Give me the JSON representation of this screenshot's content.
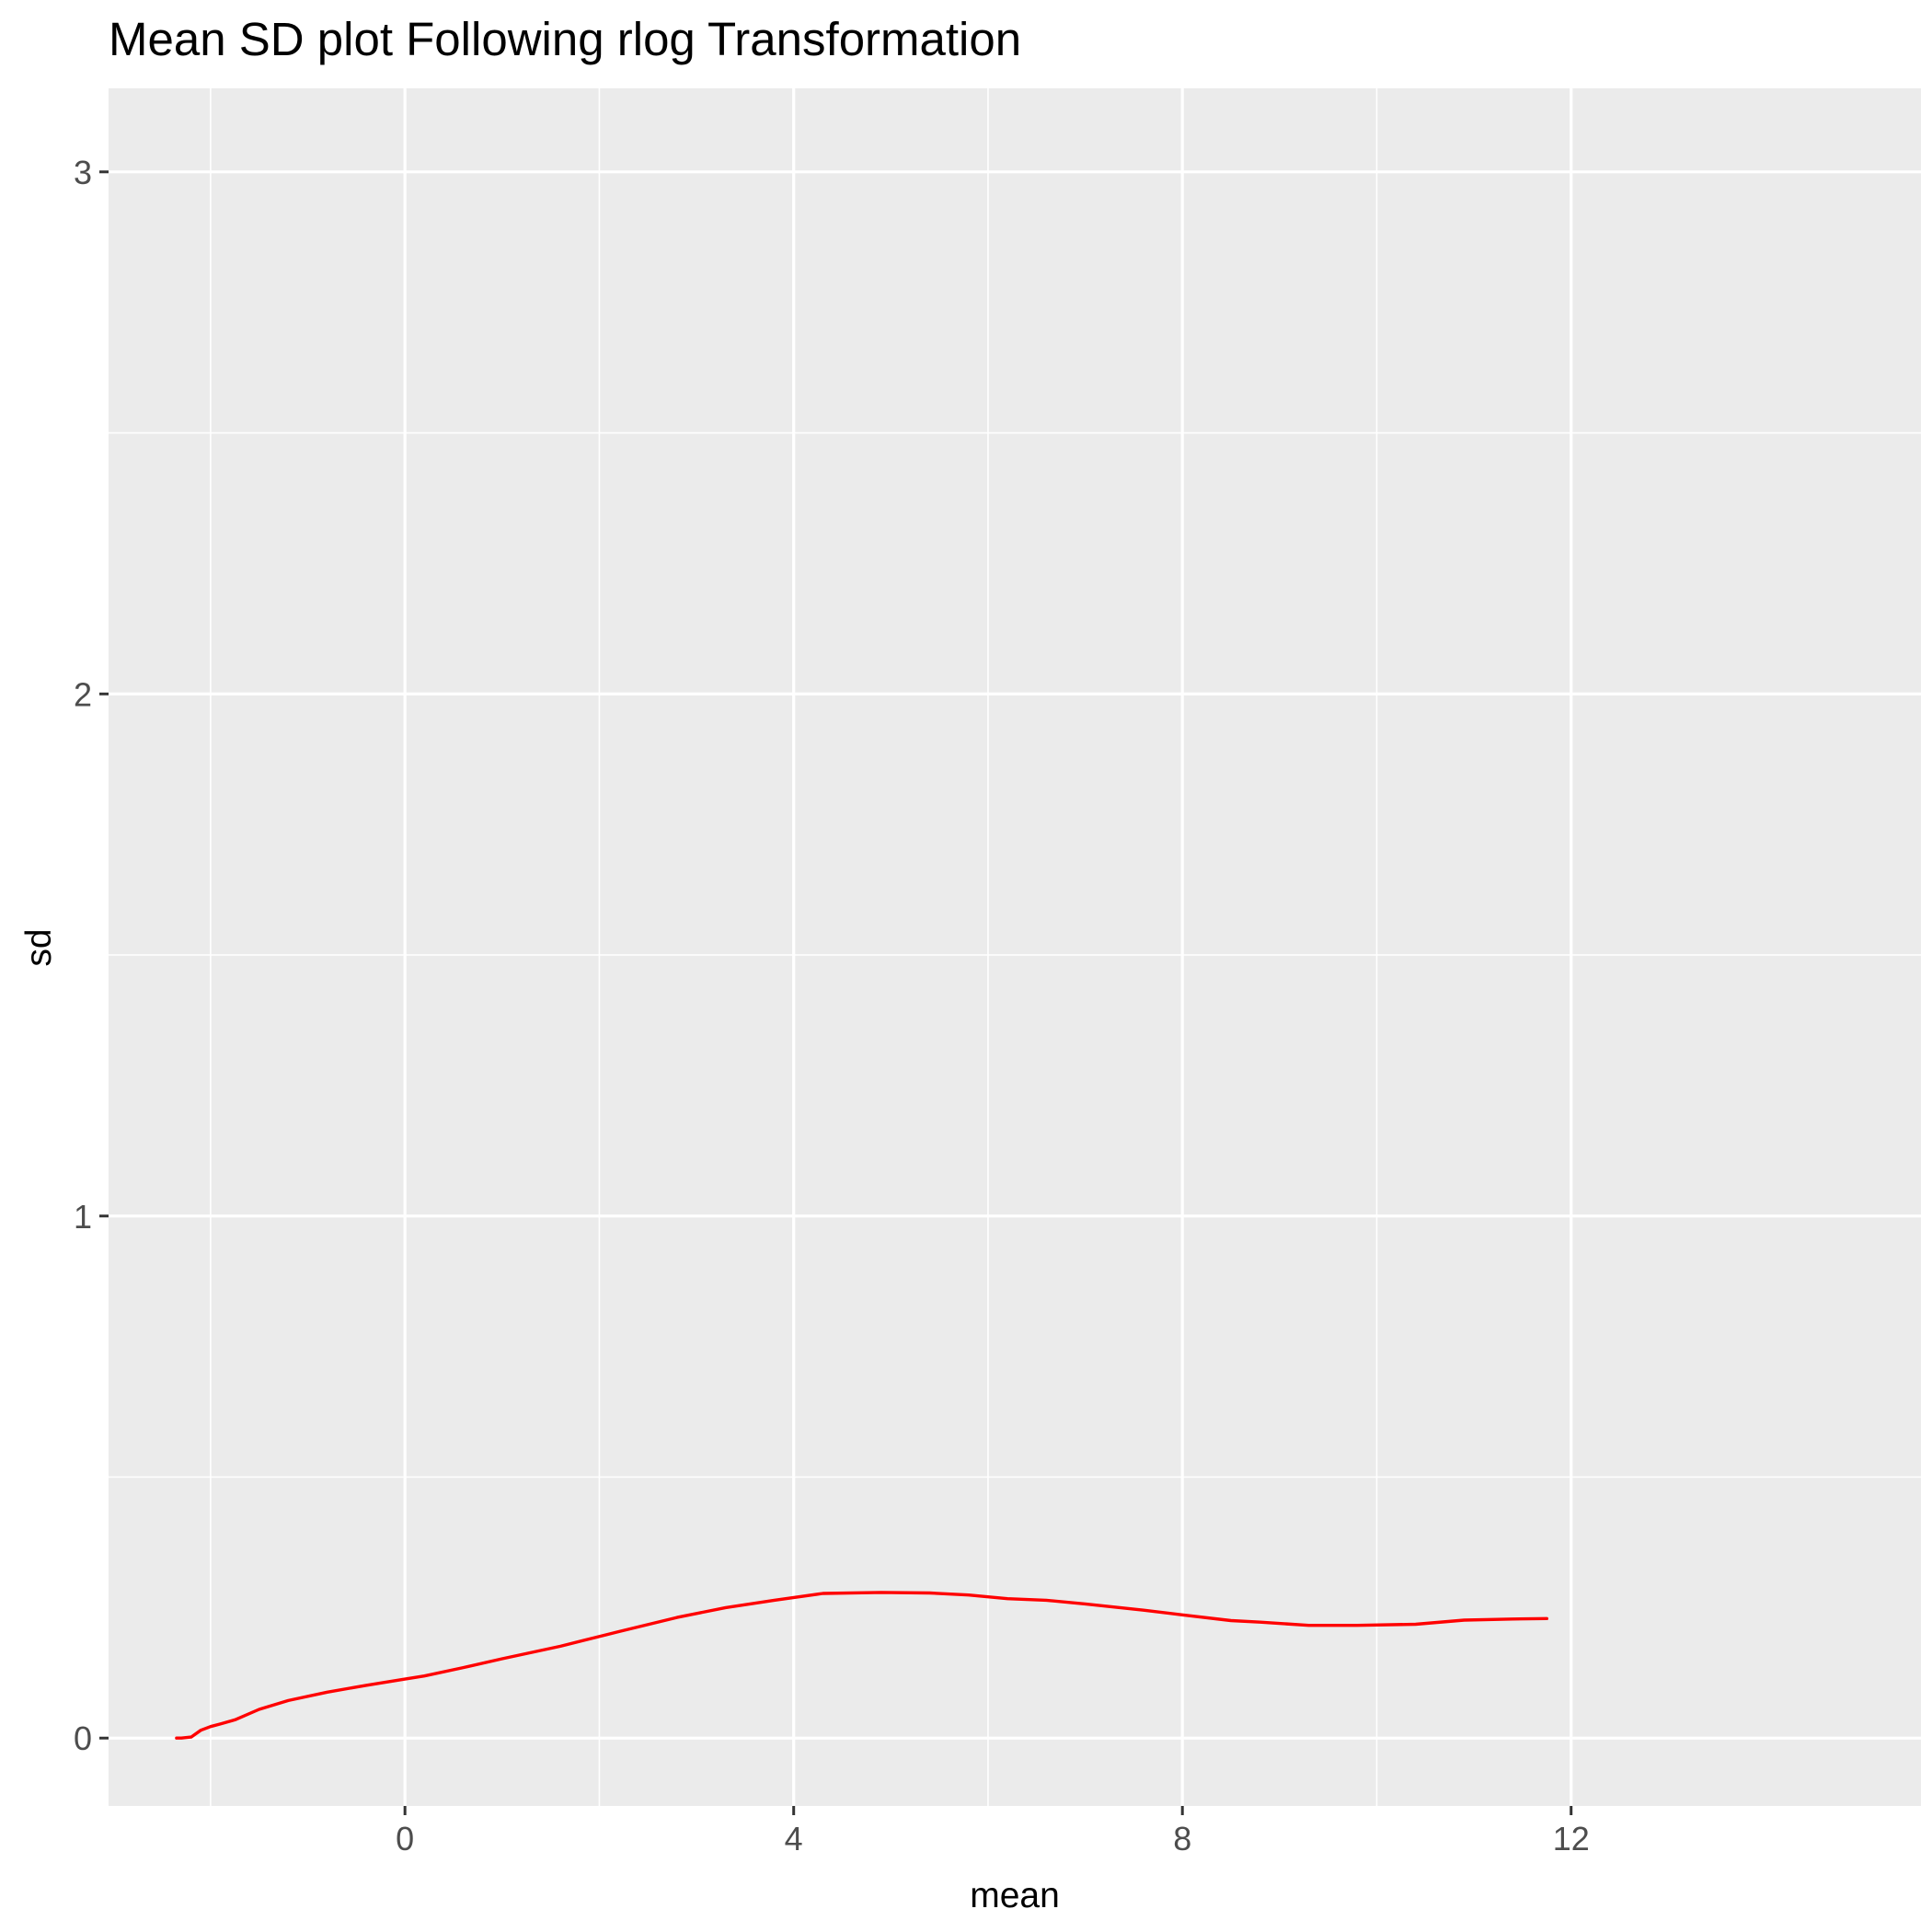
{
  "chart_data": {
    "type": "line",
    "title": "Mean SD plot Following rlog Transformation",
    "xlabel": "mean",
    "ylabel": "sd",
    "xlim": [
      -3.05,
      15.6
    ],
    "ylim": [
      -0.13,
      3.16
    ],
    "x_ticks": [
      0,
      4,
      8,
      12
    ],
    "x_tick_labels": [
      "0",
      "4",
      "8",
      "12"
    ],
    "x_minor_gridlines": [
      -2,
      2,
      6,
      10
    ],
    "y_ticks": [
      0,
      1,
      2,
      3
    ],
    "y_tick_labels": [
      "0",
      "1",
      "2",
      "3"
    ],
    "y_minor_gridlines": [
      0.5,
      1.5,
      2.5
    ],
    "grid": true,
    "background_color": "#EBEBEB",
    "gridline_color": "#FFFFFF",
    "series": [
      {
        "color": "#FF0000",
        "x": [
          -2.35,
          -2.3,
          -2.2,
          -2.1,
          -2.0,
          -1.9,
          -1.75,
          -1.5,
          -1.2,
          -0.8,
          -0.4,
          0.0,
          0.2,
          0.6,
          1.0,
          1.6,
          2.2,
          2.8,
          3.3,
          3.8,
          4.3,
          4.9,
          5.4,
          5.8,
          6.2,
          6.6,
          7.0,
          7.6,
          8.0,
          8.5,
          8.8,
          9.3,
          9.8,
          10.4,
          10.9,
          11.4,
          11.75
        ],
        "y": [
          0.0,
          0.0,
          0.002,
          0.015,
          0.022,
          0.027,
          0.035,
          0.055,
          0.072,
          0.088,
          0.101,
          0.113,
          0.119,
          0.135,
          0.152,
          0.176,
          0.204,
          0.231,
          0.25,
          0.264,
          0.277,
          0.279,
          0.278,
          0.274,
          0.267,
          0.264,
          0.257,
          0.245,
          0.236,
          0.225,
          0.222,
          0.216,
          0.216,
          0.218,
          0.226,
          0.228,
          0.229
        ]
      }
    ]
  }
}
